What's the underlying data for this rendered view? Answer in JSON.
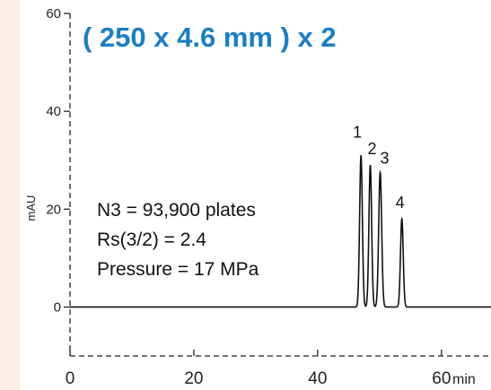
{
  "chart_data": {
    "type": "line",
    "title": "( 250 x 4.6 mm ) x 2",
    "xlabel": "",
    "x_unit": "min",
    "ylabel": "mAU",
    "xlim": [
      0,
      68
    ],
    "ylim": [
      -10,
      60
    ],
    "x_ticks": [
      0,
      20,
      40,
      60
    ],
    "y_ticks": [
      0,
      20,
      40,
      60
    ],
    "grid": false,
    "series": [
      {
        "peaks": [
          {
            "label": "1",
            "time": 47.0,
            "height": 31.0,
            "width": 0.22
          },
          {
            "label": "2",
            "time": 48.5,
            "height": 29.0,
            "width": 0.22
          },
          {
            "label": "3",
            "time": 50.1,
            "height": 27.5,
            "width": 0.24
          },
          {
            "label": "4",
            "time": 53.6,
            "height": 18.0,
            "width": 0.22
          }
        ]
      }
    ],
    "annotations": [
      "N3 = 93,900 plates",
      "Rs(3/2) = 2.4",
      "Pressure = 17 MPa"
    ]
  },
  "colors": {
    "background": "#ffffff",
    "left_strip": "#fbeee6",
    "title": "#1b7fc1",
    "trace": "#111111",
    "axis": "#222222"
  }
}
